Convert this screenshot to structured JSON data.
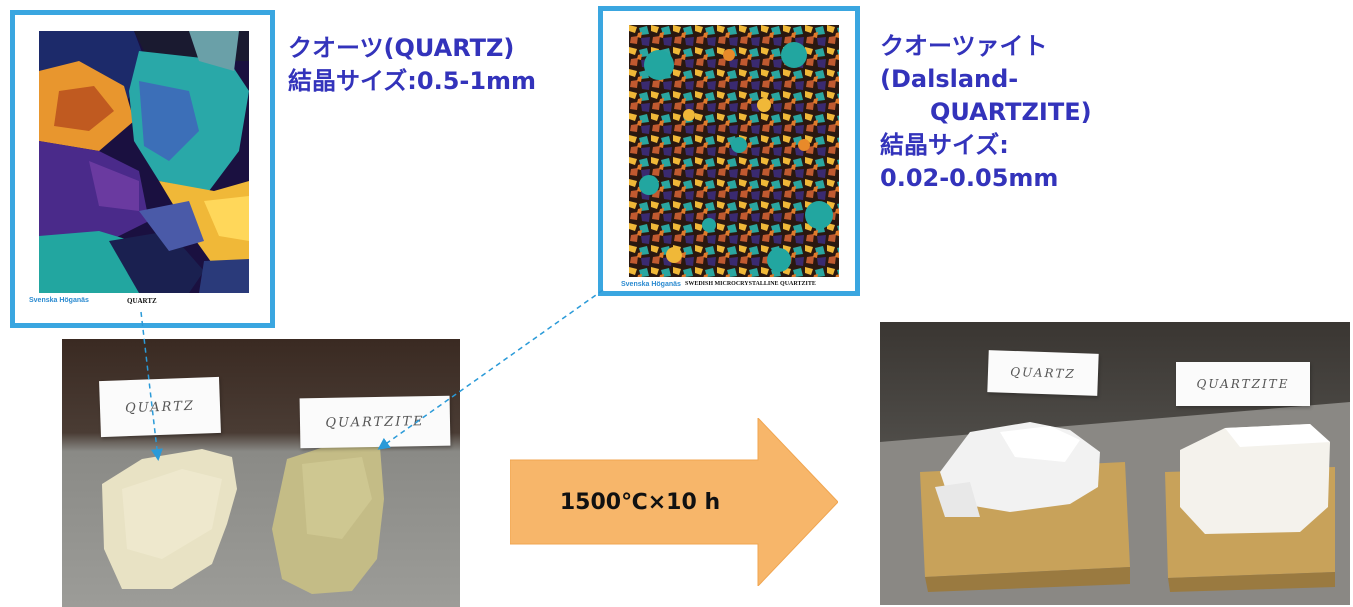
{
  "quartz_card": {
    "brand": "Svenska Höganäs",
    "label": "QUARTZ"
  },
  "quartzite_card": {
    "brand": "Svenska Höganäs",
    "label": "SWEDISH MICROCRYSTALLINE QUARTZITE"
  },
  "quartz_caption": {
    "line1": "クオーツ(QUARTZ)",
    "line2": "結晶サイズ:0.5-1mm"
  },
  "quartzite_caption": {
    "line1": "クオーツァイト",
    "line2": "(Dalsland-",
    "line3": "QUARTZITE)",
    "line4": "結晶サイズ:",
    "line5": "0.02-0.05mm"
  },
  "before_photo": {
    "tag_left": "QUARTZ",
    "tag_right": "QUARTZITE"
  },
  "after_photo": {
    "tag_left": "QUARTZ",
    "tag_right": "QUARTZITE"
  },
  "arrow": {
    "label": "1500℃×10 h",
    "fill": "#f7b66a"
  },
  "colors": {
    "caption": "#3333bb",
    "card_border": "#3aa6e0",
    "connector": "#2a9ad8"
  }
}
